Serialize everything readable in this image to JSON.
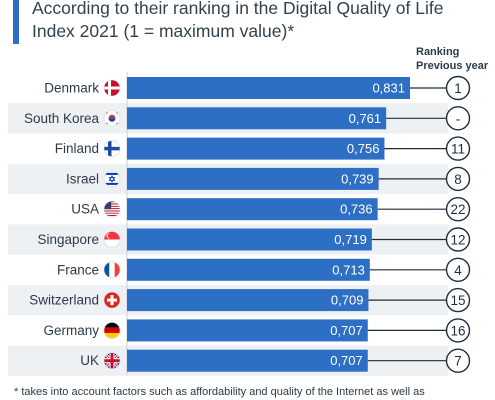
{
  "header": {
    "subtitle": "According to their ranking in the Digital Quality of Life Index 2021 (1 = maximum value)*",
    "rank_heading_1": "Ranking",
    "rank_heading_2": "Previous year"
  },
  "footnote": "* takes into account factors such as affordability and quality of the Internet as well as",
  "colors": {
    "bar": "#2d6fc4",
    "accent": "#2d6fc4",
    "grid": "#d6dbe1",
    "row_alt": "#eef1f4"
  },
  "chart_data": {
    "type": "bar",
    "orientation": "horizontal",
    "categories": [
      "Denmark",
      "South Korea",
      "Finland",
      "Israel",
      "USA",
      "Singapore",
      "France",
      "Switzerland",
      "Germany",
      "UK"
    ],
    "flags": [
      "dk",
      "kr",
      "fi",
      "il",
      "us",
      "sg",
      "fr",
      "ch",
      "de",
      "uk"
    ],
    "values": [
      0.831,
      0.761,
      0.756,
      0.739,
      0.736,
      0.719,
      0.713,
      0.709,
      0.707,
      0.707
    ],
    "value_labels": [
      "0,831",
      "0,761",
      "0,756",
      "0,739",
      "0,736",
      "0,719",
      "0,713",
      "0,709",
      "0,707",
      "0,707"
    ],
    "previous_rank": [
      "1",
      "-",
      "11",
      "8",
      "22",
      "12",
      "4",
      "15",
      "16",
      "7"
    ],
    "xlim": [
      0,
      0.831
    ],
    "grid": true
  }
}
